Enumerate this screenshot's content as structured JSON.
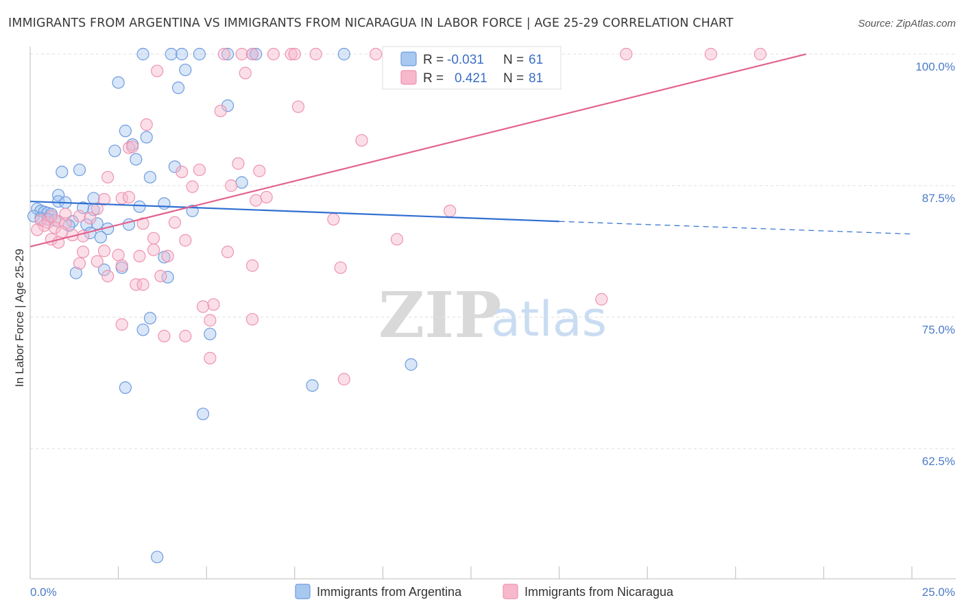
{
  "title": "IMMIGRANTS FROM ARGENTINA VS IMMIGRANTS FROM NICARAGUA IN LABOR FORCE | AGE 25-29 CORRELATION CHART",
  "source": "Source: ZipAtlas.com",
  "watermark": {
    "zip": "ZIP",
    "atlas": "atlas"
  },
  "legend": {
    "r_label": "R =",
    "n_label": "N =",
    "series": [
      {
        "r": "-0.031",
        "n": "61"
      },
      {
        "r": "0.421",
        "n": "81"
      }
    ]
  },
  "bottom_legend": [
    "Immigrants from Argentina",
    "Immigrants from Nicaragua"
  ],
  "colors": {
    "argentina_fill": "#a9c8f0",
    "argentina_stroke": "#6d9be0",
    "argentina_line": "#2f6fd1",
    "nicaragua_fill": "#f7b8cc",
    "nicaragua_stroke": "#ee93b0",
    "nicaragua_line": "#e2628f",
    "tick_text": "#4a7ac9",
    "grid": "#dddddd"
  },
  "chart_data": {
    "type": "scatter",
    "title": "IMMIGRANTS FROM ARGENTINA VS IMMIGRANTS FROM NICARAGUA IN LABOR FORCE | AGE 25-29 CORRELATION CHART",
    "xlabel": "",
    "ylabel": "In Labor Force | Age 25-29",
    "xlim": [
      0,
      25
    ],
    "ylim": [
      51.5,
      101.5
    ],
    "x_tick_labels": [
      {
        "value": 0,
        "label": "0.0%"
      },
      {
        "value": 25,
        "label": "25.0%"
      }
    ],
    "y_ticks": [
      {
        "value": 100,
        "label": "100.0%"
      },
      {
        "value": 87.5,
        "label": "87.5%"
      },
      {
        "value": 75,
        "label": "75.0%"
      },
      {
        "value": 62.5,
        "label": "62.5%"
      }
    ],
    "x_minor_ticks": [
      0,
      2.5,
      5,
      7.5,
      10,
      12.5,
      15,
      17.5,
      20,
      22.5,
      25
    ],
    "series": [
      {
        "name": "Immigrants from Argentina",
        "r": -0.031,
        "n": 61,
        "trend": {
          "x0": 0,
          "y0": 86.0,
          "x1": 15.0,
          "y1": 84.1,
          "dash_to_x": 25,
          "dash_to_y": 82.9
        },
        "points": [
          [
            3.2,
            100
          ],
          [
            4.0,
            100
          ],
          [
            4.3,
            100
          ],
          [
            4.8,
            100
          ],
          [
            5.6,
            100
          ],
          [
            6.3,
            100
          ],
          [
            6.4,
            100
          ],
          [
            8.9,
            100
          ],
          [
            4.4,
            98.5
          ],
          [
            2.5,
            97.3
          ],
          [
            4.2,
            96.8
          ],
          [
            5.6,
            95.1
          ],
          [
            2.7,
            92.7
          ],
          [
            3.3,
            92.1
          ],
          [
            2.4,
            90.8
          ],
          [
            2.9,
            91.4
          ],
          [
            3.0,
            90.0
          ],
          [
            1.4,
            89.0
          ],
          [
            0.9,
            88.8
          ],
          [
            4.1,
            89.3
          ],
          [
            3.4,
            88.3
          ],
          [
            6.0,
            87.8
          ],
          [
            0.8,
            86.6
          ],
          [
            0.8,
            86.0
          ],
          [
            1.0,
            85.9
          ],
          [
            1.8,
            86.3
          ],
          [
            3.8,
            85.8
          ],
          [
            3.1,
            85.5
          ],
          [
            1.5,
            85.4
          ],
          [
            0.2,
            85.3
          ],
          [
            0.3,
            85.1
          ],
          [
            0.4,
            85.0
          ],
          [
            0.5,
            84.9
          ],
          [
            0.6,
            84.8
          ],
          [
            0.1,
            84.6
          ],
          [
            0.3,
            84.4
          ],
          [
            0.5,
            84.3
          ],
          [
            0.7,
            84.2
          ],
          [
            1.2,
            84.1
          ],
          [
            1.9,
            83.9
          ],
          [
            1.6,
            83.8
          ],
          [
            2.8,
            83.8
          ],
          [
            1.1,
            83.7
          ],
          [
            2.2,
            83.4
          ],
          [
            1.7,
            83.0
          ],
          [
            2.0,
            82.6
          ],
          [
            1.8,
            85.2
          ],
          [
            4.6,
            85.1
          ],
          [
            3.8,
            80.7
          ],
          [
            2.1,
            79.5
          ],
          [
            2.6,
            79.7
          ],
          [
            1.3,
            79.2
          ],
          [
            3.9,
            78.8
          ],
          [
            3.4,
            74.9
          ],
          [
            3.2,
            73.8
          ],
          [
            5.1,
            73.4
          ],
          [
            2.7,
            68.3
          ],
          [
            8.0,
            68.5
          ],
          [
            10.8,
            70.5
          ],
          [
            4.9,
            65.8
          ],
          [
            3.6,
            52.2
          ]
        ]
      },
      {
        "name": "Immigrants from Nicaragua",
        "r": 0.421,
        "n": 81,
        "trend": {
          "x0": 0,
          "y0": 81.7,
          "x1": 22.0,
          "y1": 100.0
        },
        "points": [
          [
            5.5,
            100
          ],
          [
            6.0,
            100
          ],
          [
            6.3,
            100
          ],
          [
            6.9,
            100
          ],
          [
            7.4,
            100
          ],
          [
            7.5,
            100
          ],
          [
            8.1,
            100
          ],
          [
            9.8,
            100
          ],
          [
            16.9,
            100
          ],
          [
            19.3,
            100
          ],
          [
            20.7,
            100
          ],
          [
            3.6,
            98.4
          ],
          [
            6.1,
            98.2
          ],
          [
            5.4,
            94.6
          ],
          [
            7.6,
            95.0
          ],
          [
            3.3,
            93.3
          ],
          [
            9.4,
            91.8
          ],
          [
            2.8,
            91.1
          ],
          [
            5.9,
            89.6
          ],
          [
            4.8,
            89.0
          ],
          [
            6.5,
            88.9
          ],
          [
            4.3,
            88.8
          ],
          [
            2.2,
            88.3
          ],
          [
            4.6,
            87.4
          ],
          [
            5.7,
            87.5
          ],
          [
            6.7,
            86.4
          ],
          [
            6.4,
            86.1
          ],
          [
            2.1,
            86.2
          ],
          [
            2.6,
            86.3
          ],
          [
            2.8,
            86.4
          ],
          [
            11.9,
            85.1
          ],
          [
            1.0,
            84.8
          ],
          [
            1.4,
            84.6
          ],
          [
            1.9,
            85.3
          ],
          [
            0.3,
            84.2
          ],
          [
            0.5,
            84.0
          ],
          [
            0.8,
            84.1
          ],
          [
            1.0,
            83.9
          ],
          [
            0.4,
            83.7
          ],
          [
            0.7,
            83.5
          ],
          [
            0.2,
            83.3
          ],
          [
            0.9,
            83.1
          ],
          [
            1.2,
            82.8
          ],
          [
            1.5,
            82.7
          ],
          [
            0.6,
            82.4
          ],
          [
            0.8,
            82.1
          ],
          [
            8.6,
            84.3
          ],
          [
            4.1,
            84.0
          ],
          [
            3.2,
            83.9
          ],
          [
            3.5,
            82.5
          ],
          [
            4.4,
            82.3
          ],
          [
            10.4,
            82.4
          ],
          [
            1.5,
            81.2
          ],
          [
            2.1,
            81.3
          ],
          [
            3.5,
            81.4
          ],
          [
            5.6,
            81.2
          ],
          [
            2.5,
            80.9
          ],
          [
            3.1,
            80.8
          ],
          [
            3.9,
            80.8
          ],
          [
            1.4,
            80.1
          ],
          [
            1.9,
            80.3
          ],
          [
            6.3,
            79.9
          ],
          [
            8.8,
            79.7
          ],
          [
            2.6,
            79.9
          ],
          [
            2.2,
            78.9
          ],
          [
            3.7,
            78.9
          ],
          [
            3.0,
            78.1
          ],
          [
            3.2,
            78.1
          ],
          [
            16.2,
            76.7
          ],
          [
            5.2,
            76.2
          ],
          [
            4.9,
            76.0
          ],
          [
            5.1,
            74.7
          ],
          [
            6.3,
            74.8
          ],
          [
            2.6,
            74.3
          ],
          [
            3.8,
            73.2
          ],
          [
            4.4,
            73.2
          ],
          [
            5.1,
            71.1
          ],
          [
            8.9,
            69.1
          ],
          [
            2.9,
            91.2
          ],
          [
            0.6,
            84.6
          ],
          [
            1.7,
            84.4
          ]
        ]
      }
    ]
  }
}
